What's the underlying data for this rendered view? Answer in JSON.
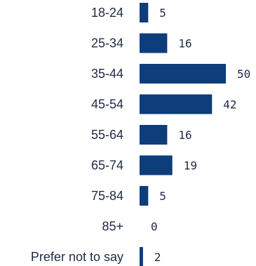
{
  "chart_data": {
    "type": "bar",
    "orientation": "horizontal",
    "categories": [
      "18-24",
      "25-34",
      "35-44",
      "45-54",
      "55-64",
      "65-74",
      "75-84",
      "85+",
      "Prefer not to say"
    ],
    "values": [
      5,
      16,
      50,
      42,
      16,
      19,
      5,
      0,
      2
    ],
    "title": "",
    "xlabel": "",
    "ylabel": "",
    "xlim": [
      0,
      50
    ],
    "grid": false,
    "legend": "none",
    "bar_color": "#0d3d7a",
    "text_color": "#1f2a44"
  }
}
